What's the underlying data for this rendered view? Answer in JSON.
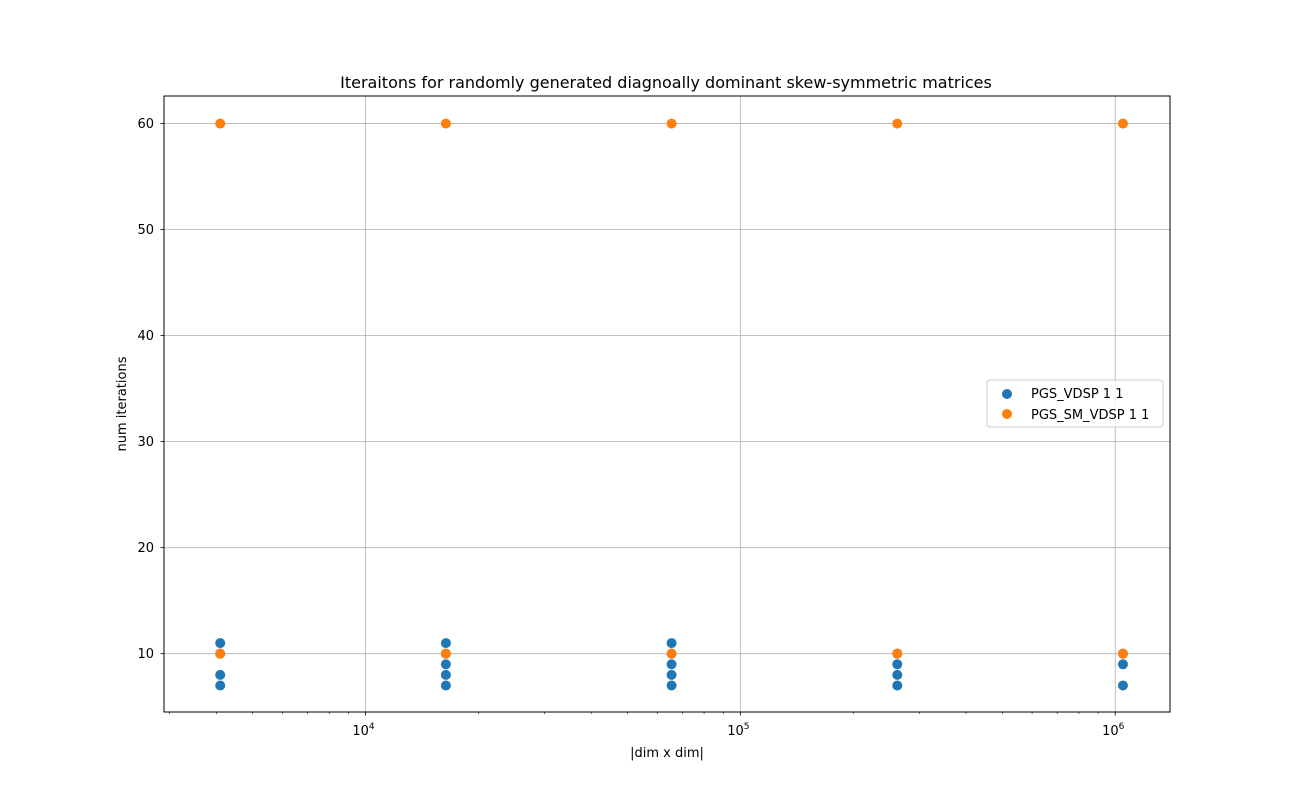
{
  "chart_data": {
    "type": "scatter",
    "title": "Iteraitons for randomly generated diagnoally dominant skew-symmetric matrices",
    "xlabel": "|dim x dim|",
    "ylabel": "num iterations",
    "xscale": "log",
    "xlim": [
      2900,
      1400000
    ],
    "ylim": [
      4.5,
      62.6
    ],
    "xticks": [
      {
        "value": 10000,
        "base": "10",
        "exp": "4"
      },
      {
        "value": 100000,
        "base": "10",
        "exp": "5"
      },
      {
        "value": 1000000,
        "base": "10",
        "exp": "6"
      }
    ],
    "yticks": [
      10,
      20,
      30,
      40,
      50,
      60
    ],
    "grid": true,
    "legend_position": "center-right",
    "series": [
      {
        "name": "PGS_VDSP 1 1",
        "color": "#1f77b4",
        "points": [
          [
            4096,
            11
          ],
          [
            4096,
            10
          ],
          [
            4096,
            8
          ],
          [
            4096,
            7
          ],
          [
            16384,
            11
          ],
          [
            16384,
            10
          ],
          [
            16384,
            9
          ],
          [
            16384,
            8
          ],
          [
            16384,
            7
          ],
          [
            65536,
            11
          ],
          [
            65536,
            10
          ],
          [
            65536,
            9
          ],
          [
            65536,
            8
          ],
          [
            65536,
            7
          ],
          [
            262144,
            10
          ],
          [
            262144,
            9
          ],
          [
            262144,
            8
          ],
          [
            262144,
            7
          ],
          [
            1048576,
            10
          ],
          [
            1048576,
            9
          ],
          [
            1048576,
            7
          ]
        ]
      },
      {
        "name": "PGS_SM_VDSP 1 1",
        "color": "#ff7f0e",
        "points": [
          [
            4096,
            60
          ],
          [
            4096,
            10
          ],
          [
            16384,
            60
          ],
          [
            16384,
            10
          ],
          [
            65536,
            60
          ],
          [
            65536,
            10
          ],
          [
            262144,
            60
          ],
          [
            262144,
            10
          ],
          [
            1048576,
            60
          ],
          [
            1048576,
            10
          ]
        ]
      }
    ]
  }
}
